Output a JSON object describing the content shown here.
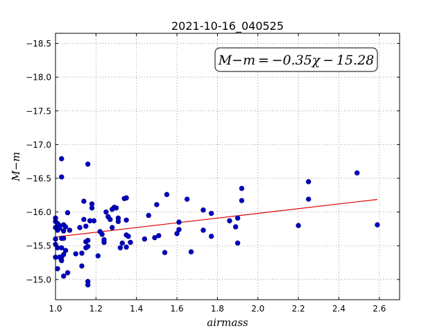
{
  "chart_data": {
    "type": "scatter",
    "title": "2021-10-16_040525",
    "xlabel": "airmass",
    "ylabel": "M−m",
    "xlim": [
      1.0,
      2.7
    ],
    "ylim": [
      -18.65,
      -14.7
    ],
    "y_inverted": true,
    "grid": true,
    "x_ticks": [
      1.0,
      1.2,
      1.4,
      1.6,
      1.8,
      2.0,
      2.2,
      2.4,
      2.6
    ],
    "x_tick_labels": [
      "1.0",
      "1.2",
      "1.4",
      "1.6",
      "1.8",
      "2.0",
      "2.2",
      "2.4",
      "2.6"
    ],
    "y_ticks": [
      -15.0,
      -15.5,
      -16.0,
      -16.5,
      -17.0,
      -17.5,
      -18.0,
      -18.5
    ],
    "y_tick_labels": [
      "−15.0",
      "−15.5",
      "−16.0",
      "−16.5",
      "−17.0",
      "−17.5",
      "−18.0",
      "−18.5"
    ],
    "annotation": "M−m = −0.35χ − 15.28",
    "colors": {
      "points": "#0000c0",
      "points_edge": "#000080",
      "fit_line": "#dd0000",
      "grid": "#808080"
    },
    "fit": {
      "slope": -0.35,
      "intercept": -15.28,
      "x_range": [
        1.0,
        2.59
      ]
    },
    "points": [
      [
        1.0,
        -15.33
      ],
      [
        1.0,
        -15.52
      ],
      [
        1.0,
        -15.6
      ],
      [
        1.0,
        -15.77
      ],
      [
        1.0,
        -15.86
      ],
      [
        1.0,
        -15.91
      ],
      [
        1.01,
        -15.16
      ],
      [
        1.01,
        -15.47
      ],
      [
        1.01,
        -15.73
      ],
      [
        1.01,
        -15.83
      ],
      [
        1.02,
        -15.33
      ],
      [
        1.02,
        -15.76
      ],
      [
        1.02,
        -15.8
      ],
      [
        1.03,
        -15.28
      ],
      [
        1.03,
        -15.33
      ],
      [
        1.03,
        -15.47
      ],
      [
        1.03,
        -15.61
      ],
      [
        1.03,
        -16.52
      ],
      [
        1.03,
        -16.79
      ],
      [
        1.04,
        -15.05
      ],
      [
        1.04,
        -15.37
      ],
      [
        1.04,
        -15.61
      ],
      [
        1.04,
        -15.72
      ],
      [
        1.04,
        -15.81
      ],
      [
        1.05,
        -15.43
      ],
      [
        1.05,
        -15.78
      ],
      [
        1.06,
        -15.1
      ],
      [
        1.06,
        -15.99
      ],
      [
        1.07,
        -15.73
      ],
      [
        1.1,
        -15.38
      ],
      [
        1.12,
        -15.77
      ],
      [
        1.13,
        -15.39
      ],
      [
        1.13,
        -15.2
      ],
      [
        1.14,
        -16.16
      ],
      [
        1.14,
        -15.89
      ],
      [
        1.15,
        -15.47
      ],
      [
        1.15,
        -15.56
      ],
      [
        1.15,
        -15.79
      ],
      [
        1.16,
        -14.92
      ],
      [
        1.16,
        -14.97
      ],
      [
        1.16,
        -15.49
      ],
      [
        1.16,
        -15.58
      ],
      [
        1.16,
        -16.71
      ],
      [
        1.17,
        -15.87
      ],
      [
        1.18,
        -16.12
      ],
      [
        1.18,
        -16.06
      ],
      [
        1.19,
        -15.87
      ],
      [
        1.21,
        -15.35
      ],
      [
        1.22,
        -15.71
      ],
      [
        1.23,
        -15.67
      ],
      [
        1.24,
        -15.55
      ],
      [
        1.24,
        -15.59
      ],
      [
        1.25,
        -16.0
      ],
      [
        1.26,
        -15.93
      ],
      [
        1.27,
        -15.89
      ],
      [
        1.28,
        -15.77
      ],
      [
        1.28,
        -16.04
      ],
      [
        1.29,
        -16.07
      ],
      [
        1.3,
        -16.06
      ],
      [
        1.31,
        -15.86
      ],
      [
        1.31,
        -15.91
      ],
      [
        1.32,
        -15.47
      ],
      [
        1.33,
        -15.54
      ],
      [
        1.34,
        -16.2
      ],
      [
        1.35,
        -16.21
      ],
      [
        1.35,
        -15.88
      ],
      [
        1.35,
        -15.66
      ],
      [
        1.35,
        -15.48
      ],
      [
        1.36,
        -15.64
      ],
      [
        1.37,
        -15.55
      ],
      [
        1.44,
        -15.6
      ],
      [
        1.46,
        -15.95
      ],
      [
        1.49,
        -15.62
      ],
      [
        1.5,
        -16.11
      ],
      [
        1.51,
        -15.65
      ],
      [
        1.54,
        -15.4
      ],
      [
        1.55,
        -16.26
      ],
      [
        1.6,
        -15.68
      ],
      [
        1.61,
        -15.85
      ],
      [
        1.61,
        -15.74
      ],
      [
        1.65,
        -16.19
      ],
      [
        1.67,
        -15.41
      ],
      [
        1.73,
        -15.73
      ],
      [
        1.73,
        -16.03
      ],
      [
        1.77,
        -15.64
      ],
      [
        1.77,
        -15.98
      ],
      [
        1.86,
        -15.87
      ],
      [
        1.89,
        -15.78
      ],
      [
        1.9,
        -15.54
      ],
      [
        1.9,
        -15.91
      ],
      [
        1.92,
        -16.17
      ],
      [
        1.92,
        -16.35
      ],
      [
        2.2,
        -15.8
      ],
      [
        2.25,
        -16.19
      ],
      [
        2.25,
        -16.45
      ],
      [
        2.49,
        -16.58
      ],
      [
        2.59,
        -15.81
      ]
    ]
  }
}
